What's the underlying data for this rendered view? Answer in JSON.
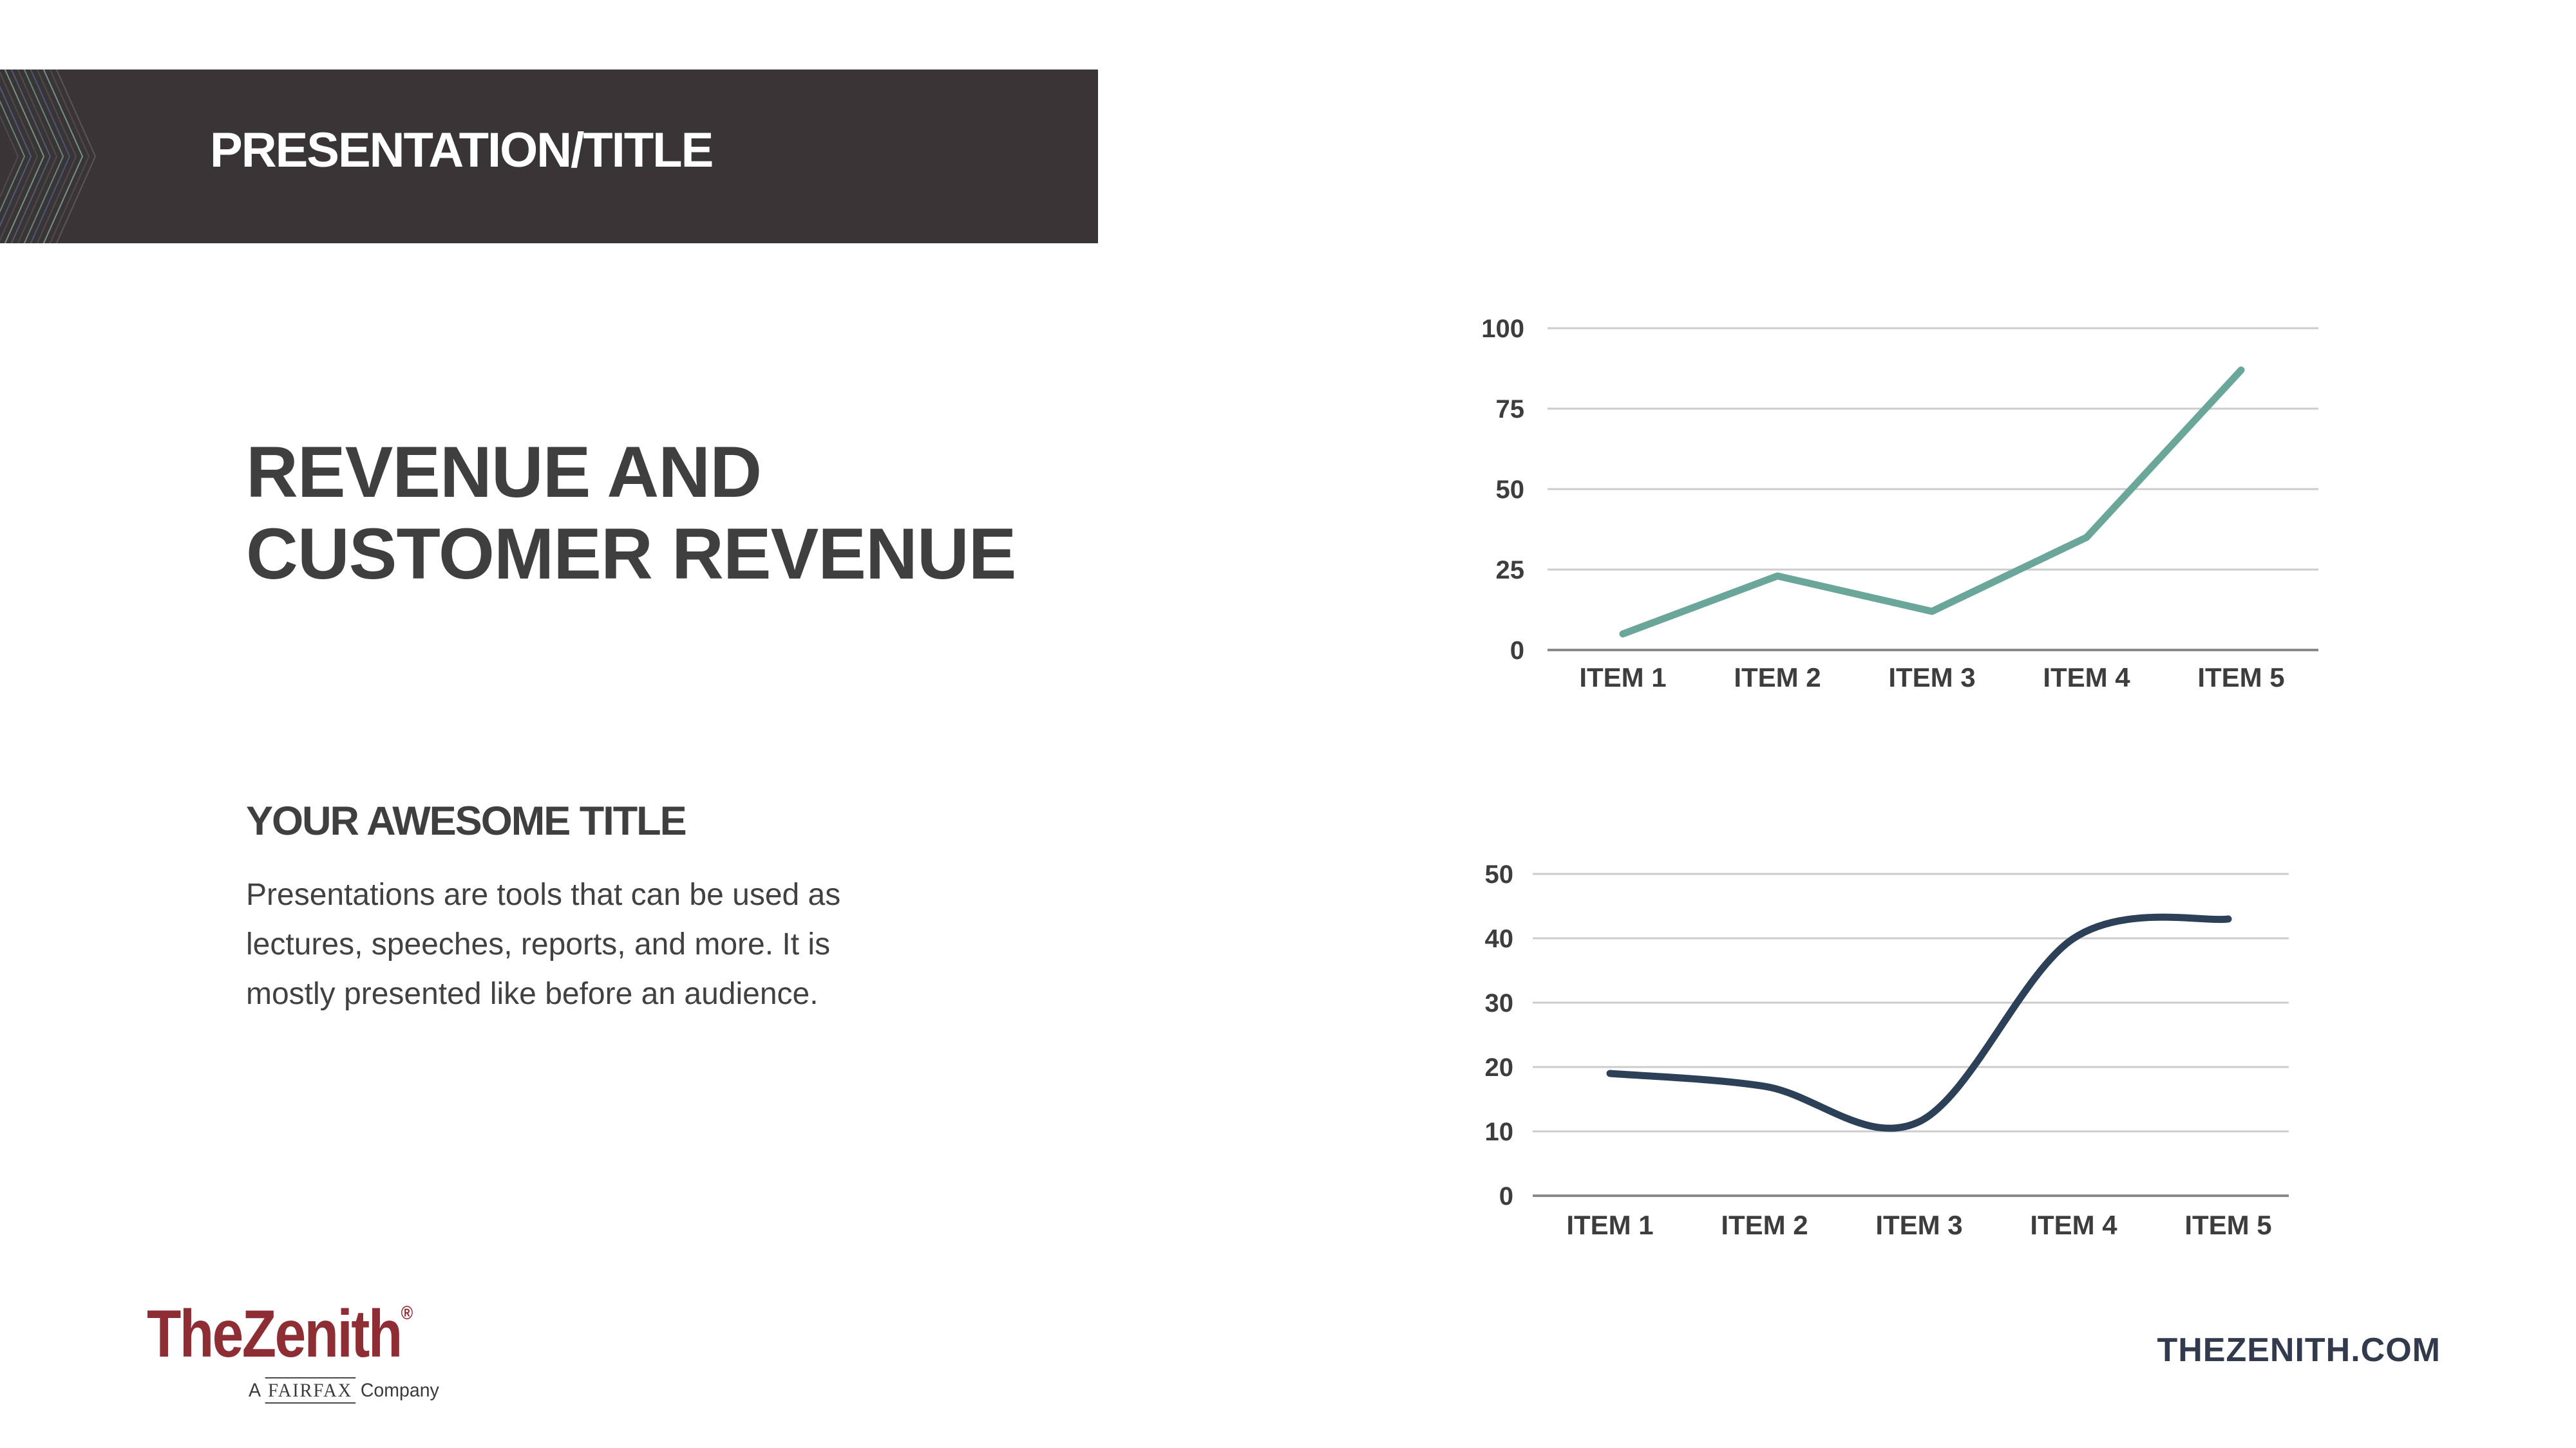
{
  "slide": {
    "header": {
      "title": "PRESENTATION/TITLE"
    },
    "main": {
      "title_lines": [
        "REVENUE AND",
        "CUSTOMER REVENUE"
      ],
      "subtitle": "YOUR AWESOME TITLE",
      "body_lines": [
        "Presentations are tools that can be used as",
        "lectures, speeches, reports, and more. It is",
        "mostly presented like before an audience."
      ]
    },
    "footer": {
      "logo": {
        "brand": "TheZenith",
        "registered_mark": "®",
        "tagline_prefix": "A",
        "tagline_fairfax": "FAIRFAX",
        "tagline_suffix": "Company"
      },
      "website": "THEZENITH.COM"
    },
    "colors": {
      "header_bar_bg": "#393536",
      "header_text": "#ffffff",
      "title_text": "#3f3f3f",
      "body_text": "#414141",
      "logo_maroon": "#8e2e34",
      "website_navy": "#323a4d",
      "gridline": "#cccccc",
      "zero_line": "#8a8a8a",
      "axis_label": "#3d3d3d",
      "chart1_line": "#6ba69a",
      "chart2_line": "#2c4057"
    }
  },
  "chart_data": [
    {
      "type": "line",
      "title": "",
      "xlabel": "",
      "ylabel": "",
      "categories": [
        "ITEM 1",
        "ITEM 2",
        "ITEM 3",
        "ITEM 4",
        "ITEM 5"
      ],
      "values": [
        5,
        23,
        12,
        35,
        87
      ],
      "ylim": [
        0,
        100
      ],
      "y_ticks": [
        0,
        25,
        50,
        75,
        100
      ],
      "grid": "horizontal",
      "legend": "none",
      "line_color": "#6ba69a",
      "smooth": false
    },
    {
      "type": "line",
      "title": "",
      "xlabel": "",
      "ylabel": "",
      "categories": [
        "ITEM 1",
        "ITEM 2",
        "ITEM 3",
        "ITEM 4",
        "ITEM 5"
      ],
      "values": [
        19,
        17,
        11.5,
        40,
        43
      ],
      "ylim": [
        0,
        50
      ],
      "y_ticks": [
        0,
        10,
        20,
        30,
        40,
        50
      ],
      "grid": "horizontal",
      "legend": "none",
      "line_color": "#2c4057",
      "smooth": true
    }
  ]
}
